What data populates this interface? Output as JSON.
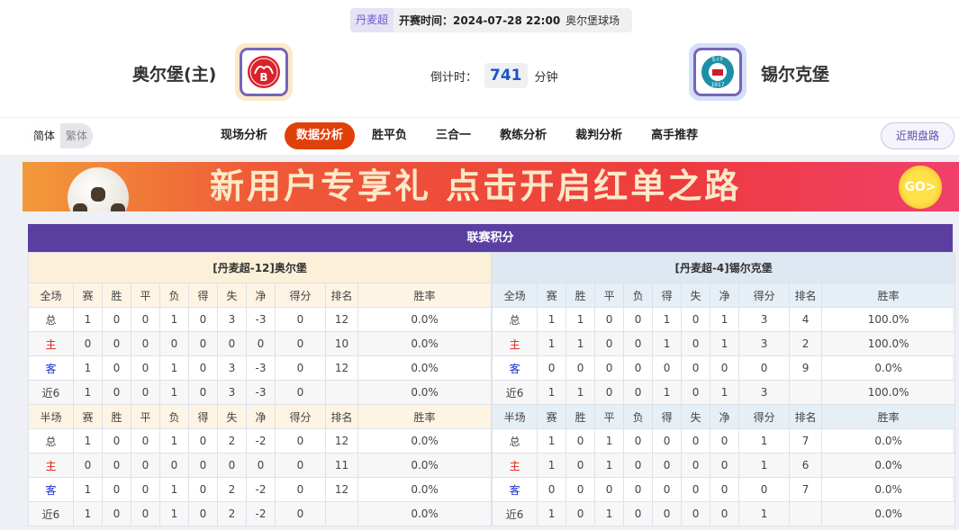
{
  "match": {
    "league": "丹麦超",
    "time_label": "开赛时间：",
    "time": "2024-07-28 22:00",
    "venue": "奥尔堡球场",
    "home": "奥尔堡(主)",
    "away": "锡尔克堡",
    "countdown_label": "倒计时：",
    "countdown": "741",
    "countdown_unit": "分钟"
  },
  "nav": {
    "lang": [
      "简体",
      "繁体"
    ],
    "tabs": [
      "现场分析",
      "数据分析",
      "胜平负",
      "三合一",
      "教练分析",
      "裁判分析",
      "高手推荐"
    ],
    "active_tab": "数据分析",
    "recent": "近期盘路"
  },
  "banner": {
    "text": "新用户专享礼  点击开启红单之路",
    "go": "GO>"
  },
  "standings": {
    "title": "联赛积分",
    "columns_full": [
      "全场",
      "赛",
      "胜",
      "平",
      "负",
      "得",
      "失",
      "净",
      "得分",
      "排名",
      "胜率"
    ],
    "columns_half": [
      "半场",
      "赛",
      "胜",
      "平",
      "负",
      "得",
      "失",
      "净",
      "得分",
      "排名",
      "胜率"
    ],
    "home": {
      "title": "[丹麦超-12]奥尔堡",
      "full": [
        [
          "总",
          "1",
          "0",
          "0",
          "1",
          "0",
          "3",
          "-3",
          "0",
          "12",
          "0.0%"
        ],
        [
          "主",
          "0",
          "0",
          "0",
          "0",
          "0",
          "0",
          "0",
          "0",
          "10",
          "0.0%"
        ],
        [
          "客",
          "1",
          "0",
          "0",
          "1",
          "0",
          "3",
          "-3",
          "0",
          "12",
          "0.0%"
        ],
        [
          "近6",
          "1",
          "0",
          "0",
          "1",
          "0",
          "3",
          "-3",
          "0",
          "",
          "0.0%"
        ]
      ],
      "half": [
        [
          "总",
          "1",
          "0",
          "0",
          "1",
          "0",
          "2",
          "-2",
          "0",
          "12",
          "0.0%"
        ],
        [
          "主",
          "0",
          "0",
          "0",
          "0",
          "0",
          "0",
          "0",
          "0",
          "11",
          "0.0%"
        ],
        [
          "客",
          "1",
          "0",
          "0",
          "1",
          "0",
          "2",
          "-2",
          "0",
          "12",
          "0.0%"
        ],
        [
          "近6",
          "1",
          "0",
          "0",
          "1",
          "0",
          "2",
          "-2",
          "0",
          "",
          "0.0%"
        ]
      ]
    },
    "away": {
      "title": "[丹麦超-4]锡尔克堡",
      "full": [
        [
          "总",
          "1",
          "1",
          "0",
          "0",
          "1",
          "0",
          "1",
          "3",
          "4",
          "100.0%"
        ],
        [
          "主",
          "1",
          "1",
          "0",
          "0",
          "1",
          "0",
          "1",
          "3",
          "2",
          "100.0%"
        ],
        [
          "客",
          "0",
          "0",
          "0",
          "0",
          "0",
          "0",
          "0",
          "0",
          "9",
          "0.0%"
        ],
        [
          "近6",
          "1",
          "1",
          "0",
          "0",
          "1",
          "0",
          "1",
          "3",
          "",
          "100.0%"
        ]
      ],
      "half": [
        [
          "总",
          "1",
          "0",
          "1",
          "0",
          "0",
          "0",
          "0",
          "1",
          "7",
          "0.0%"
        ],
        [
          "主",
          "1",
          "0",
          "1",
          "0",
          "0",
          "0",
          "0",
          "1",
          "6",
          "0.0%"
        ],
        [
          "客",
          "0",
          "0",
          "0",
          "0",
          "0",
          "0",
          "0",
          "0",
          "7",
          "0.0%"
        ],
        [
          "近6",
          "1",
          "0",
          "1",
          "0",
          "0",
          "0",
          "0",
          "1",
          "",
          "0.0%"
        ]
      ]
    }
  },
  "colors": {
    "accent": "#e0400a",
    "header": "#5b3fa0",
    "home_label": "#e0201a",
    "away_label": "#1a2fd0"
  }
}
